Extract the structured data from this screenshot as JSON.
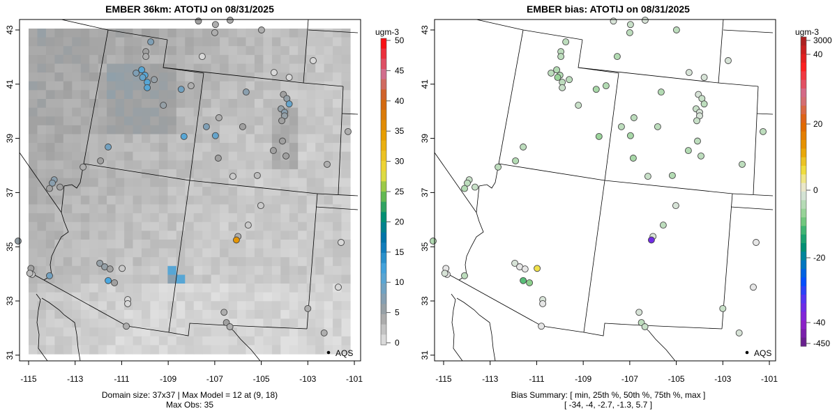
{
  "panels": [
    {
      "title": "EMBER 36km: ATOTIJ on 08/31/2025",
      "caption_lines": [
        "Domain size: 37x37 | Max Model = 12 at (9, 18)",
        "Max Obs: 35"
      ],
      "colorbar": {
        "unit": "ugm-3",
        "labels": [
          "50",
          "45",
          "40",
          "35",
          "30",
          "25",
          "20",
          "15",
          "10",
          "5",
          "0"
        ]
      },
      "legend": "AQS"
    },
    {
      "title": "EMBER bias: ATOTIJ on 08/31/2025",
      "caption_lines": [
        "Bias Summary: [ min, 25th %, 50th %, 75th %, max ]",
        "[ -34,   -4,   -2.7,   -1.3,   5.7 ]"
      ],
      "colorbar": {
        "unit": "ugm-3",
        "labels": [
          "3000",
          "40",
          "20",
          "0",
          "-20",
          "-40",
          "-450"
        ]
      },
      "legend": "AQS"
    }
  ],
  "axes": {
    "lon_ticks": [
      "-115",
      "-113",
      "-111",
      "-109",
      "-107",
      "-105",
      "-103",
      "-101"
    ],
    "lat_ticks": [
      "43",
      "41",
      "39",
      "37",
      "35",
      "33",
      "31"
    ]
  },
  "chart_data": {
    "type": "scatter",
    "description_fields": [
      "lon",
      "lat",
      "obs",
      "bias"
    ],
    "lon_range": [
      -115.3,
      -100.7
    ],
    "lat_range": [
      30.85,
      43.4
    ],
    "model_max": 12,
    "obs_max": 35,
    "stations": [
      [
        -109.75,
        42.56,
        8,
        -3
      ],
      [
        -109.96,
        42.2,
        5,
        -3
      ],
      [
        -109.96,
        42.02,
        4,
        -3
      ],
      [
        -110.38,
        41.41,
        8,
        -3
      ],
      [
        -110.14,
        41.53,
        11,
        -4
      ],
      [
        -110.0,
        41.33,
        11,
        -4
      ],
      [
        -110.1,
        41.25,
        10,
        -6
      ],
      [
        -109.9,
        41.07,
        11,
        -3
      ],
      [
        -109.9,
        40.87,
        11,
        -2
      ],
      [
        -109.6,
        41.17,
        6,
        -3
      ],
      [
        -108.44,
        40.81,
        9,
        -5
      ],
      [
        -108.02,
        40.94,
        4,
        -4
      ],
      [
        -109.21,
        40.22,
        6,
        -2
      ],
      [
        -108.32,
        39.07,
        11,
        -6
      ],
      [
        -111.58,
        38.68,
        9,
        -3
      ],
      [
        -111.91,
        38.17,
        5,
        -4
      ],
      [
        -112.66,
        37.94,
        4,
        -3
      ],
      [
        -113.9,
        37.47,
        7,
        -2
      ],
      [
        -113.98,
        37.35,
        7,
        -3
      ],
      [
        -113.65,
        37.2,
        5,
        -2
      ],
      [
        -114.1,
        37.15,
        5,
        -4
      ],
      [
        -115.45,
        35.21,
        6,
        -4
      ],
      [
        -114.9,
        34.2,
        5,
        0
      ],
      [
        -114.85,
        33.98,
        2,
        0
      ],
      [
        -114.95,
        34.02,
        3,
        -1
      ],
      [
        -114.1,
        33.93,
        9,
        -3
      ],
      [
        -111.94,
        34.39,
        6,
        -1
      ],
      [
        -111.73,
        34.26,
        6,
        0
      ],
      [
        -111.5,
        34.18,
        5,
        0
      ],
      [
        -110.98,
        34.2,
        2,
        5.7
      ],
      [
        -111.58,
        33.75,
        12,
        -10
      ],
      [
        -111.31,
        33.67,
        5,
        -7
      ],
      [
        -110.74,
        33.05,
        1,
        -1
      ],
      [
        -110.74,
        32.9,
        1,
        0
      ],
      [
        -110.8,
        32.07,
        4,
        0
      ],
      [
        -107.54,
        42.02,
        1,
        -4
      ],
      [
        -107.7,
        43.33,
        5,
        -1
      ],
      [
        -106.97,
        43.2,
        4,
        -2
      ],
      [
        -107.0,
        42.9,
        4,
        -3
      ],
      [
        -106.34,
        43.36,
        4,
        -1
      ],
      [
        -104.99,
        43.0,
        4,
        -3
      ],
      [
        -104.45,
        41.43,
        1,
        -1
      ],
      [
        -103.8,
        41.25,
        1,
        -1
      ],
      [
        -102.77,
        41.87,
        1,
        -1
      ],
      [
        -105.65,
        40.71,
        7,
        -4
      ],
      [
        -104.05,
        40.62,
        5,
        -1
      ],
      [
        -103.9,
        40.47,
        6,
        -2
      ],
      [
        -103.8,
        40.27,
        10,
        -3
      ],
      [
        -104.15,
        40.09,
        6,
        -2
      ],
      [
        -104.0,
        39.96,
        7,
        -1
      ],
      [
        -104.0,
        39.83,
        6,
        -1
      ],
      [
        -104.12,
        39.65,
        5,
        -2
      ],
      [
        -106.82,
        39.76,
        4,
        -3
      ],
      [
        -107.36,
        39.43,
        8,
        -3
      ],
      [
        -106.97,
        39.1,
        10,
        -5
      ],
      [
        -105.8,
        39.43,
        5,
        -3
      ],
      [
        -104.09,
        38.9,
        5,
        -3
      ],
      [
        -104.48,
        38.55,
        5,
        -4
      ],
      [
        -103.94,
        38.35,
        5,
        -3
      ],
      [
        -106.85,
        38.27,
        5,
        -5
      ],
      [
        -106.22,
        37.6,
        2,
        -2
      ],
      [
        -105.17,
        37.63,
        3,
        -4
      ],
      [
        -102.17,
        38.04,
        4,
        -3
      ],
      [
        -101.27,
        39.25,
        4,
        -3
      ],
      [
        -105.02,
        36.52,
        2,
        -1
      ],
      [
        -105.56,
        35.8,
        2,
        -3
      ],
      [
        -106.0,
        35.38,
        4,
        -1
      ],
      [
        -106.07,
        35.25,
        35,
        -34
      ],
      [
        -101.57,
        35.16,
        1,
        0
      ],
      [
        -101.69,
        33.51,
        1,
        0
      ],
      [
        -103.0,
        32.72,
        4,
        -2
      ],
      [
        -106.6,
        32.58,
        4,
        -1
      ],
      [
        -106.5,
        32.2,
        5,
        -3
      ],
      [
        -106.35,
        32.05,
        4,
        -2
      ],
      [
        -102.3,
        31.82,
        4,
        -1
      ]
    ]
  },
  "colors": {
    "frame": "#000000",
    "background": "#ffffff"
  }
}
